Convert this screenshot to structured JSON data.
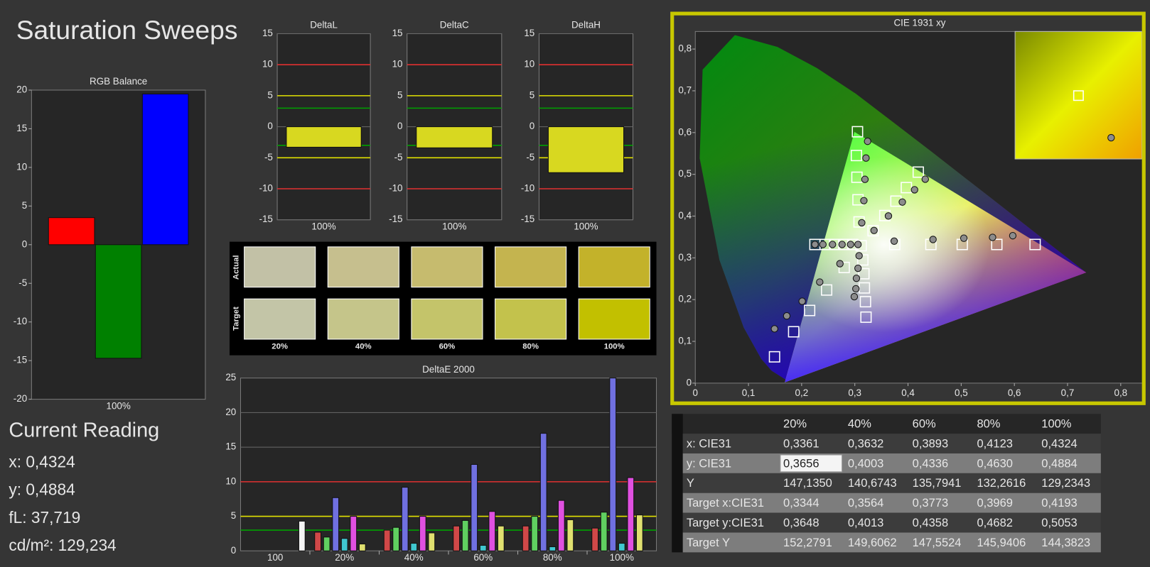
{
  "title": "Saturation Sweeps",
  "chart_data": [
    {
      "type": "bar",
      "title": "RGB Balance",
      "categories": [
        "100%"
      ],
      "series": [
        {
          "color": "#ff0000",
          "values": [
            3.5
          ]
        },
        {
          "color": "#008000",
          "values": [
            -14.7
          ]
        },
        {
          "color": "#0000ff",
          "values": [
            19.5
          ]
        }
      ],
      "ylim": [
        -20,
        20
      ],
      "yticks": [
        -20,
        -15,
        -10,
        -5,
        0,
        5,
        10,
        15,
        20
      ],
      "grid": false
    },
    {
      "type": "bar",
      "title": "DeltaL",
      "categories": [
        "100%"
      ],
      "values": [
        -3.3
      ],
      "color": "#d8d820",
      "ylim": [
        -15,
        15
      ],
      "yticks": [
        -15,
        -10,
        -5,
        0,
        5,
        10,
        15
      ],
      "grid": true,
      "reference_lines": [
        {
          "value": 10,
          "color": "#e03030"
        },
        {
          "value": -10,
          "color": "#e03030"
        },
        {
          "value": 5,
          "color": "#e0e000"
        },
        {
          "value": -5,
          "color": "#e0e000"
        },
        {
          "value": 3,
          "color": "#00a000"
        },
        {
          "value": -3,
          "color": "#00a000"
        }
      ]
    },
    {
      "type": "bar",
      "title": "DeltaC",
      "categories": [
        "100%"
      ],
      "values": [
        -3.4
      ],
      "color": "#d8d820",
      "ylim": [
        -15,
        15
      ],
      "yticks": [
        -15,
        -10,
        -5,
        0,
        5,
        10,
        15
      ],
      "grid": true,
      "reference_lines": [
        {
          "value": 10,
          "color": "#e03030"
        },
        {
          "value": -10,
          "color": "#e03030"
        },
        {
          "value": 5,
          "color": "#e0e000"
        },
        {
          "value": -5,
          "color": "#e0e000"
        },
        {
          "value": 3,
          "color": "#00a000"
        },
        {
          "value": -3,
          "color": "#00a000"
        }
      ]
    },
    {
      "type": "bar",
      "title": "DeltaH",
      "categories": [
        "100%"
      ],
      "values": [
        -7.4
      ],
      "color": "#d8d820",
      "ylim": [
        -15,
        15
      ],
      "yticks": [
        -15,
        -10,
        -5,
        0,
        5,
        10,
        15
      ],
      "grid": true,
      "reference_lines": [
        {
          "value": 10,
          "color": "#e03030"
        },
        {
          "value": -10,
          "color": "#e03030"
        },
        {
          "value": 5,
          "color": "#e0e000"
        },
        {
          "value": -5,
          "color": "#e0e000"
        },
        {
          "value": 3,
          "color": "#00a000"
        },
        {
          "value": -3,
          "color": "#00a000"
        }
      ]
    },
    {
      "type": "bar",
      "title": "DeltaE 2000",
      "categories": [
        "100",
        "20%",
        "40%",
        "60%",
        "80%",
        "100%"
      ],
      "series": [
        {
          "color": "#d04848",
          "values": [
            null,
            2.7,
            3.0,
            3.6,
            3.6,
            3.3
          ]
        },
        {
          "color": "#60d060",
          "values": [
            null,
            2.0,
            3.4,
            4.4,
            5.0,
            5.6
          ]
        },
        {
          "color": "#7070e0",
          "values": [
            null,
            7.7,
            9.2,
            12.5,
            17.0,
            25.0
          ]
        },
        {
          "color": "#40c8d0",
          "values": [
            null,
            1.8,
            1.1,
            0.8,
            0.6,
            1.1
          ]
        },
        {
          "color": "#e050e0",
          "values": [
            null,
            5.0,
            5.0,
            5.7,
            7.3,
            10.6
          ]
        },
        {
          "color": "#e0e070",
          "values": [
            null,
            1.0,
            2.6,
            3.6,
            4.5,
            5.2
          ]
        },
        {
          "color": "#f4f4f4",
          "values": [
            4.3,
            null,
            null,
            null,
            null,
            null
          ]
        }
      ],
      "ylim": [
        0,
        25
      ],
      "yticks": [
        0,
        5,
        10,
        15,
        20,
        25
      ],
      "grid": true,
      "reference_lines": [
        {
          "value": 10,
          "color": "#e03030"
        },
        {
          "value": 5,
          "color": "#e0e000"
        },
        {
          "value": 3,
          "color": "#00a000"
        }
      ]
    },
    {
      "type": "scatter",
      "title": "CIE 1931 xy",
      "xlim": [
        0,
        0.844
      ],
      "ylim": [
        0,
        0.842
      ],
      "xticks": [
        0,
        {
          "value": 0.1,
          "label": "0,1"
        },
        {
          "value": 0.2,
          "label": "0,2"
        },
        {
          "value": 0.3,
          "label": "0,3"
        },
        {
          "value": 0.4,
          "label": "0,4"
        },
        {
          "value": 0.5,
          "label": "0,5"
        },
        {
          "value": 0.6,
          "label": "0,6"
        },
        {
          "value": 0.7,
          "label": "0,7"
        },
        {
          "value": 0.8,
          "label": "0,8"
        }
      ],
      "yticks": [
        0,
        {
          "value": 0.1,
          "label": "0,1"
        },
        {
          "value": 0.2,
          "label": "0,2"
        },
        {
          "value": 0.3,
          "label": "0,3"
        },
        {
          "value": 0.4,
          "label": "0,4"
        },
        {
          "value": 0.5,
          "label": "0,5"
        },
        {
          "value": 0.6,
          "label": "0,6"
        },
        {
          "value": 0.7,
          "label": "0,7"
        },
        {
          "value": 0.8,
          "label": "0,8"
        }
      ],
      "series": [
        {
          "marker": "square",
          "color": "#ffffff",
          "x": [
            0.312,
            0.375,
            0.443,
            0.502,
            0.567,
            0.639,
            0.305,
            0.303,
            0.304,
            0.306,
            0.308,
            0.149,
            0.185,
            0.215,
            0.247,
            0.28,
            0.225,
            0.244,
            0.262,
            0.279,
            0.296,
            0.321,
            0.32,
            0.318,
            0.317,
            0.315,
            0.3344,
            0.3564,
            0.3773,
            0.3969,
            0.4193
          ],
          "y": [
            0.329,
            0.332,
            0.332,
            0.332,
            0.332,
            0.332,
            0.602,
            0.545,
            0.493,
            0.439,
            0.386,
            0.063,
            0.123,
            0.174,
            0.223,
            0.277,
            0.332,
            0.332,
            0.332,
            0.332,
            0.332,
            0.158,
            0.195,
            0.228,
            0.262,
            0.295,
            0.3648,
            0.4013,
            0.4358,
            0.4682,
            0.5053
          ]
        },
        {
          "marker": "circle",
          "color": "#8c8c8c",
          "x": [
            0.306,
            0.374,
            0.447,
            0.505,
            0.559,
            0.597,
            0.324,
            0.321,
            0.319,
            0.317,
            0.313,
            0.149,
            0.172,
            0.201,
            0.234,
            0.272,
            0.225,
            0.24,
            0.258,
            0.276,
            0.292,
            0.299,
            0.302,
            0.303,
            0.306,
            0.308,
            0.3361,
            0.3632,
            0.3893,
            0.4123,
            0.4324
          ],
          "y": [
            0.332,
            0.34,
            0.344,
            0.347,
            0.349,
            0.353,
            0.579,
            0.539,
            0.488,
            0.437,
            0.384,
            0.13,
            0.161,
            0.196,
            0.242,
            0.286,
            0.332,
            0.332,
            0.332,
            0.332,
            0.332,
            0.207,
            0.226,
            0.251,
            0.275,
            0.305,
            0.3656,
            0.4003,
            0.4336,
            0.463,
            0.4884
          ]
        }
      ]
    }
  ],
  "swatches": {
    "row_labels": [
      "Actual",
      "Target"
    ],
    "columns": [
      "20%",
      "40%",
      "60%",
      "80%",
      "100%"
    ],
    "actual": [
      "#c2c1a6",
      "#c6bf8e",
      "#c6bb6e",
      "#c4b44f",
      "#c3b22a"
    ],
    "target": [
      "#c3c5a7",
      "#c5c58a",
      "#c4c46a",
      "#c3c24c",
      "#c2c000"
    ]
  },
  "current_reading": {
    "title": "Current Reading",
    "lines": [
      "x: 0,4324",
      "y: 0,4884",
      "fL: 37,719",
      "cd/m²: 129,234"
    ]
  },
  "table": {
    "columns": [
      "20%",
      "40%",
      "60%",
      "80%",
      "100%"
    ],
    "rows": [
      {
        "label": "x: CIE31",
        "values": [
          "0,3361",
          "0,3632",
          "0,3893",
          "0,4123",
          "0,4324"
        ]
      },
      {
        "label": "y: CIE31",
        "values": [
          "0,3656",
          "0,4003",
          "0,4336",
          "0,4630",
          "0,4884"
        ]
      },
      {
        "label": "Y",
        "values": [
          "147,1350",
          "140,6743",
          "135,7941",
          "132,2616",
          "129,2343"
        ]
      },
      {
        "label": "Target x:CIE31",
        "values": [
          "0,3344",
          "0,3564",
          "0,3773",
          "0,3969",
          "0,4193"
        ]
      },
      {
        "label": "Target y:CIE31",
        "values": [
          "0,3648",
          "0,4013",
          "0,4358",
          "0,4682",
          "0,5053"
        ]
      },
      {
        "label": "Target Y",
        "values": [
          "152,2791",
          "149,6062",
          "147,5524",
          "145,9406",
          "144,3823"
        ]
      }
    ],
    "highlight": {
      "row": 1,
      "column": 0
    }
  }
}
